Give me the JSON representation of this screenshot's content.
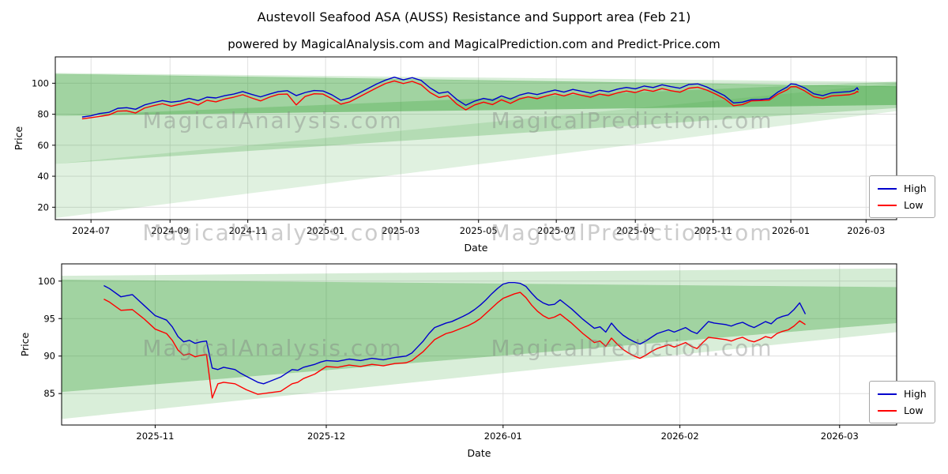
{
  "title": "Austevoll Seafood ASA (AUSS) Resistance and Support area (Feb 21)",
  "subtitle": "powered by MagicalAnalysis.com and MagicalPrediction.com and Predict-Price.com",
  "watermarks": {
    "left": "MagicalAnalysis.com",
    "right": "MagicalPrediction.com"
  },
  "colors": {
    "high": "#0000cd",
    "low": "#ff0000",
    "band": "#2e9e2e",
    "grid": "#dcdcdc",
    "frame": "#000000",
    "text": "#000000"
  },
  "chart_data": [
    {
      "name": "overview-chart",
      "type": "line",
      "title": "",
      "xlabel": "Date",
      "ylabel": "Price",
      "x_unit": "days since 2024-07-01",
      "xlim": [
        -28,
        632
      ],
      "ylim": [
        12,
        117
      ],
      "grid": true,
      "legend_position": "right",
      "x_ticks": [
        {
          "pos": 0,
          "label": "2024-07"
        },
        {
          "pos": 62,
          "label": "2024-09"
        },
        {
          "pos": 123,
          "label": "2024-11"
        },
        {
          "pos": 184,
          "label": "2025-01"
        },
        {
          "pos": 243,
          "label": "2025-03"
        },
        {
          "pos": 304,
          "label": "2025-05"
        },
        {
          "pos": 365,
          "label": "2025-07"
        },
        {
          "pos": 427,
          "label": "2025-09"
        },
        {
          "pos": 488,
          "label": "2025-11"
        },
        {
          "pos": 549,
          "label": "2026-01"
        },
        {
          "pos": 608,
          "label": "2026-03"
        }
      ],
      "y_ticks": [
        20,
        40,
        60,
        80,
        100
      ],
      "bands": [
        {
          "opacity": 0.15,
          "points": [
            [
              -28,
              13
            ],
            [
              632,
              82
            ],
            [
              632,
              100
            ],
            [
              -28,
              48
            ]
          ]
        },
        {
          "opacity": 0.25,
          "points": [
            [
              -28,
              48
            ],
            [
              632,
              84
            ],
            [
              632,
              101
            ],
            [
              -28,
              79
            ]
          ]
        },
        {
          "opacity": 0.45,
          "points": [
            [
              -28,
              79
            ],
            [
              632,
              86
            ],
            [
              632,
              98
            ],
            [
              -28,
              106
            ]
          ]
        },
        {
          "opacity": 0.18,
          "points": [
            [
              -28,
              105.8
            ],
            [
              632,
              97.5
            ],
            [
              632,
              100.8
            ],
            [
              -28,
              106.6
            ]
          ]
        }
      ],
      "series": [
        {
          "name": "High",
          "color": "#0000cd",
          "x": [
            -7,
            0,
            7,
            14,
            21,
            28,
            35,
            42,
            49,
            56,
            63,
            70,
            77,
            84,
            91,
            98,
            105,
            112,
            119,
            126,
            133,
            140,
            147,
            154,
            161,
            168,
            175,
            182,
            189,
            196,
            203,
            210,
            217,
            224,
            231,
            238,
            245,
            252,
            259,
            266,
            273,
            280,
            287,
            294,
            301,
            308,
            315,
            322,
            329,
            336,
            343,
            350,
            357,
            364,
            371,
            378,
            385,
            392,
            399,
            406,
            413,
            420,
            427,
            434,
            441,
            448,
            455,
            462,
            469,
            476,
            483,
            490,
            497,
            504,
            511,
            518,
            525,
            532,
            539,
            546,
            549,
            553,
            560,
            567,
            574,
            581,
            588,
            595,
            599,
            601,
            602
          ],
          "values": [
            78.2,
            79.0,
            80.5,
            81.2,
            83.8,
            84.2,
            83.2,
            86.0,
            87.5,
            88.8,
            87.8,
            88.5,
            90.2,
            88.8,
            91.0,
            90.5,
            92.0,
            93.0,
            94.6,
            92.8,
            91.2,
            93.0,
            94.6,
            95.2,
            92.0,
            94.0,
            95.3,
            95.0,
            92.5,
            89.0,
            90.5,
            93.5,
            96.5,
            99.5,
            102.0,
            103.9,
            102.2,
            103.6,
            101.8,
            97.0,
            93.5,
            94.5,
            89.5,
            85.8,
            88.5,
            90.2,
            89.0,
            91.8,
            89.8,
            92.3,
            93.8,
            92.7,
            94.2,
            95.6,
            94.3,
            96.0,
            94.8,
            93.6,
            95.4,
            94.5,
            96.2,
            97.3,
            96.4,
            98.2,
            97.2,
            99.0,
            97.8,
            96.8,
            99.2,
            99.6,
            97.6,
            94.8,
            92.0,
            87.3,
            87.8,
            89.4,
            89.5,
            90.0,
            94.4,
            97.5,
            99.6,
            99.3,
            96.9,
            93.2,
            92.0,
            93.8,
            94.2,
            94.6,
            95.5,
            97.1,
            95.6
          ]
        },
        {
          "name": "Low",
          "color": "#ff0000",
          "x": [
            -7,
            0,
            7,
            14,
            21,
            28,
            35,
            42,
            49,
            56,
            63,
            70,
            77,
            84,
            91,
            98,
            105,
            112,
            119,
            126,
            133,
            140,
            147,
            154,
            161,
            168,
            175,
            182,
            189,
            196,
            203,
            210,
            217,
            224,
            231,
            238,
            245,
            252,
            259,
            266,
            273,
            280,
            287,
            294,
            301,
            308,
            315,
            322,
            329,
            336,
            343,
            350,
            357,
            364,
            371,
            378,
            385,
            392,
            399,
            406,
            413,
            420,
            427,
            434,
            441,
            448,
            455,
            462,
            469,
            476,
            483,
            490,
            497,
            504,
            511,
            518,
            525,
            532,
            539,
            546,
            549,
            553,
            560,
            567,
            574,
            581,
            588,
            595,
            599,
            601,
            602
          ],
          "values": [
            77.0,
            77.8,
            78.6,
            79.5,
            82.0,
            82.2,
            80.8,
            84.0,
            85.5,
            86.8,
            85.2,
            86.5,
            88.0,
            86.0,
            89.0,
            88.0,
            89.8,
            91.0,
            92.6,
            90.5,
            88.6,
            91.0,
            92.8,
            93.0,
            86.0,
            91.5,
            93.2,
            93.0,
            90.0,
            86.5,
            88.0,
            91.0,
            94.0,
            97.0,
            99.8,
            101.5,
            99.8,
            101.2,
            99.0,
            94.0,
            90.8,
            92.0,
            86.5,
            82.8,
            86.0,
            87.8,
            86.2,
            89.3,
            87.0,
            89.8,
            91.2,
            90.0,
            91.8,
            93.2,
            91.8,
            93.6,
            92.2,
            91.0,
            93.0,
            92.0,
            93.8,
            95.0,
            94.0,
            95.8,
            94.8,
            96.6,
            95.2,
            94.2,
            96.8,
            97.4,
            95.6,
            93.0,
            90.0,
            85.5,
            86.2,
            88.6,
            88.8,
            89.1,
            93.0,
            95.7,
            97.7,
            97.8,
            95.0,
            91.3,
            90.1,
            91.8,
            92.2,
            92.6,
            93.5,
            94.7,
            94.2
          ]
        }
      ]
    },
    {
      "name": "detail-chart",
      "type": "line",
      "title": "",
      "xlabel": "Date",
      "ylabel": "Price",
      "x_unit": "days since 2024-07-01",
      "xlim": [
        471.6,
        618
      ],
      "ylim": [
        80.8,
        102.3
      ],
      "grid": true,
      "legend_position": "right",
      "x_ticks": [
        {
          "pos": 488,
          "label": "2025-11"
        },
        {
          "pos": 518,
          "label": "2025-12"
        },
        {
          "pos": 549,
          "label": "2026-01"
        },
        {
          "pos": 580,
          "label": "2026-02"
        },
        {
          "pos": 608,
          "label": "2026-03"
        }
      ],
      "y_ticks": [
        85,
        90,
        95,
        100
      ],
      "bands": [
        {
          "opacity": 0.18,
          "points": [
            [
              471.6,
              81.6
            ],
            [
              618,
              93.2
            ],
            [
              618,
              94.4
            ],
            [
              471.6,
              85.2
            ]
          ]
        },
        {
          "opacity": 0.45,
          "points": [
            [
              471.6,
              85.2
            ],
            [
              618,
              94.4
            ],
            [
              618,
              99.2
            ],
            [
              471.6,
              100.2
            ]
          ]
        },
        {
          "opacity": 0.2,
          "points": [
            [
              471.6,
              100.2
            ],
            [
              618,
              99.2
            ],
            [
              618,
              101.7
            ],
            [
              471.6,
              100.7
            ]
          ]
        }
      ],
      "series": [
        {
          "name": "High",
          "color": "#0000cd",
          "x": [
            479,
            480,
            482,
            484,
            486,
            488,
            490,
            491,
            492,
            493,
            494,
            495,
            496,
            497,
            498,
            499,
            500,
            502,
            503,
            504,
            505,
            506,
            507,
            508,
            510,
            511,
            512,
            513,
            514,
            516,
            517,
            518,
            520,
            522,
            524,
            526,
            528,
            530,
            532,
            533,
            534,
            535,
            536,
            537,
            538,
            539,
            540,
            542,
            543,
            544,
            545,
            546,
            547,
            548,
            549,
            550,
            551,
            552,
            553,
            554,
            555,
            556,
            557,
            558,
            559,
            560,
            561,
            562,
            563,
            564,
            565,
            566,
            567,
            568,
            569,
            570,
            571,
            572,
            573,
            574,
            575,
            576,
            578,
            579,
            580,
            581,
            582,
            583,
            584,
            585,
            586,
            588,
            589,
            590,
            591,
            592,
            593,
            594,
            595,
            596,
            597,
            598,
            599,
            600,
            601,
            602
          ],
          "values": [
            99.4,
            99.0,
            97.9,
            98.2,
            96.8,
            95.4,
            94.8,
            93.9,
            92.6,
            91.9,
            92.1,
            91.7,
            91.9,
            92.0,
            88.4,
            88.2,
            88.5,
            88.2,
            87.7,
            87.3,
            86.9,
            86.5,
            86.3,
            86.6,
            87.2,
            87.7,
            88.2,
            88.1,
            88.5,
            88.9,
            89.2,
            89.4,
            89.3,
            89.6,
            89.4,
            89.7,
            89.5,
            89.8,
            90.0,
            90.4,
            91.2,
            92.0,
            93.0,
            93.8,
            94.1,
            94.4,
            94.6,
            95.3,
            95.7,
            96.2,
            96.8,
            97.5,
            98.3,
            99.0,
            99.6,
            99.8,
            99.8,
            99.7,
            99.3,
            98.4,
            97.6,
            97.1,
            96.8,
            96.9,
            97.5,
            96.9,
            96.3,
            95.6,
            94.9,
            94.3,
            93.7,
            93.9,
            93.2,
            94.4,
            93.5,
            92.8,
            92.3,
            91.9,
            91.6,
            92.0,
            92.5,
            93.0,
            93.5,
            93.2,
            93.5,
            93.8,
            93.3,
            93.0,
            93.8,
            94.6,
            94.4,
            94.2,
            94.0,
            94.3,
            94.5,
            94.1,
            93.8,
            94.2,
            94.6,
            94.3,
            95.0,
            95.3,
            95.5,
            96.2,
            97.1,
            95.6
          ]
        },
        {
          "name": "Low",
          "color": "#ff0000",
          "x": [
            479,
            480,
            482,
            484,
            486,
            488,
            490,
            491,
            492,
            493,
            494,
            495,
            496,
            497,
            498,
            499,
            500,
            502,
            503,
            504,
            505,
            506,
            507,
            508,
            510,
            511,
            512,
            513,
            514,
            516,
            517,
            518,
            520,
            522,
            524,
            526,
            528,
            530,
            532,
            533,
            534,
            535,
            536,
            537,
            538,
            539,
            540,
            542,
            543,
            544,
            545,
            546,
            547,
            548,
            549,
            550,
            551,
            552,
            553,
            554,
            555,
            556,
            557,
            558,
            559,
            560,
            561,
            562,
            563,
            564,
            565,
            566,
            567,
            568,
            569,
            570,
            571,
            572,
            573,
            574,
            575,
            576,
            578,
            579,
            580,
            581,
            582,
            583,
            584,
            585,
            586,
            588,
            589,
            590,
            591,
            592,
            593,
            594,
            595,
            596,
            597,
            598,
            599,
            600,
            601,
            602
          ],
          "values": [
            97.6,
            97.2,
            96.1,
            96.2,
            95.0,
            93.6,
            93.0,
            92.1,
            90.8,
            90.1,
            90.3,
            89.9,
            90.1,
            90.2,
            84.4,
            86.3,
            86.5,
            86.3,
            85.9,
            85.5,
            85.2,
            84.9,
            85.0,
            85.1,
            85.3,
            85.8,
            86.3,
            86.5,
            87.0,
            87.6,
            88.1,
            88.6,
            88.5,
            88.8,
            88.6,
            88.9,
            88.7,
            89.0,
            89.1,
            89.4,
            90.0,
            90.6,
            91.4,
            92.2,
            92.6,
            93.0,
            93.2,
            93.8,
            94.1,
            94.5,
            95.0,
            95.7,
            96.4,
            97.1,
            97.7,
            98.0,
            98.3,
            98.5,
            97.8,
            96.8,
            96.0,
            95.4,
            95.0,
            95.2,
            95.6,
            95.0,
            94.4,
            93.7,
            93.0,
            92.4,
            91.8,
            92.0,
            91.3,
            92.4,
            91.6,
            90.9,
            90.4,
            90.0,
            89.7,
            90.1,
            90.6,
            91.0,
            91.5,
            91.2,
            91.5,
            91.8,
            91.3,
            91.0,
            91.8,
            92.5,
            92.4,
            92.2,
            92.0,
            92.3,
            92.5,
            92.1,
            91.9,
            92.2,
            92.6,
            92.4,
            93.0,
            93.3,
            93.5,
            94.0,
            94.7,
            94.2
          ]
        }
      ]
    }
  ]
}
